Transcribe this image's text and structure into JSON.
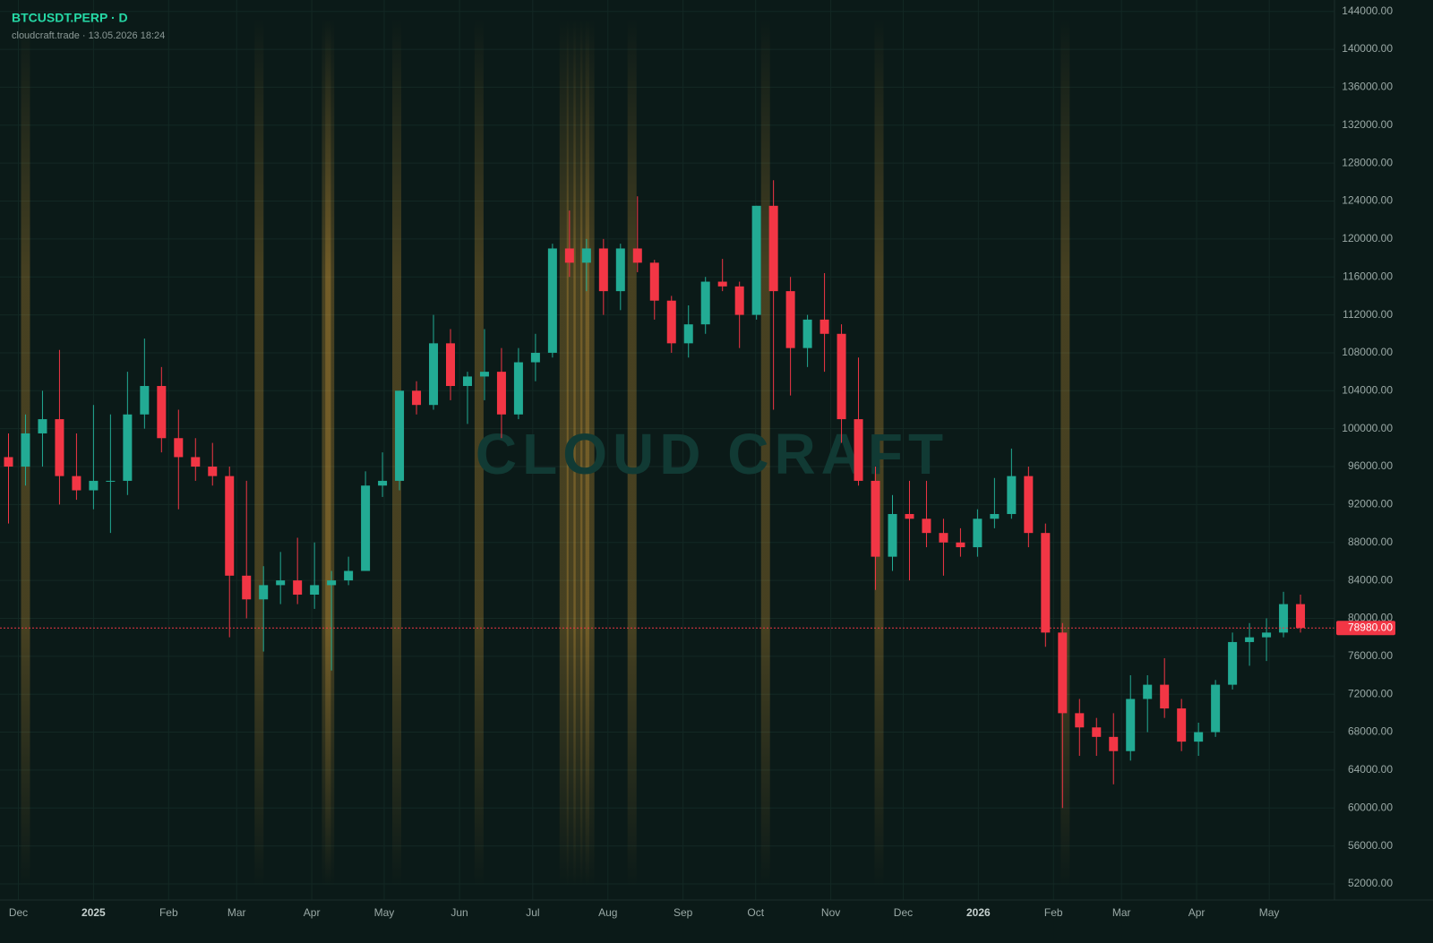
{
  "chart_data": {
    "type": "candlestick",
    "title": "BTCUSDT.PERP · D",
    "subtitle": "cloudcraft.trade · 13.05.2026 18:24",
    "watermark": "CLOUD CRAFT",
    "up_color": "#22ab94",
    "down_color": "#f23645",
    "grid": true,
    "xlim": [
      -0.5,
      78
    ],
    "ylim": [
      50300,
      145200
    ],
    "xticks": [
      {
        "value": 0.58,
        "label": "Dec"
      },
      {
        "value": 5.0,
        "label": "2025"
      },
      {
        "value": 9.42,
        "label": "Feb"
      },
      {
        "value": 13.42,
        "label": "Mar"
      },
      {
        "value": 17.84,
        "label": "Apr"
      },
      {
        "value": 22.1,
        "label": "May"
      },
      {
        "value": 26.53,
        "label": "Jun"
      },
      {
        "value": 30.84,
        "label": "Jul"
      },
      {
        "value": 35.26,
        "label": "Aug"
      },
      {
        "value": 39.68,
        "label": "Sep"
      },
      {
        "value": 43.95,
        "label": "Oct"
      },
      {
        "value": 48.37,
        "label": "Nov"
      },
      {
        "value": 52.63,
        "label": "Dec"
      },
      {
        "value": 57.05,
        "label": "2026"
      },
      {
        "value": 61.47,
        "label": "Feb"
      },
      {
        "value": 65.47,
        "label": "Mar"
      },
      {
        "value": 69.89,
        "label": "Apr"
      },
      {
        "value": 74.16,
        "label": "May"
      }
    ],
    "yticks": [
      {
        "value": 52000,
        "label": "52000.00"
      },
      {
        "value": 56000,
        "label": "56000.00"
      },
      {
        "value": 60000,
        "label": "60000.00"
      },
      {
        "value": 64000,
        "label": "64000.00"
      },
      {
        "value": 68000,
        "label": "68000.00"
      },
      {
        "value": 72000,
        "label": "72000.00"
      },
      {
        "value": 76000,
        "label": "76000.00"
      },
      {
        "value": 80000,
        "label": "80000.00"
      },
      {
        "value": 84000,
        "label": "84000.00"
      },
      {
        "value": 88000,
        "label": "88000.00"
      },
      {
        "value": 92000,
        "label": "92000.00"
      },
      {
        "value": 96000,
        "label": "96000.00"
      },
      {
        "value": 100000,
        "label": "100000.00"
      },
      {
        "value": 104000,
        "label": "104000.00"
      },
      {
        "value": 108000,
        "label": "108000.00"
      },
      {
        "value": 112000,
        "label": "112000.00"
      },
      {
        "value": 116000,
        "label": "116000.00"
      },
      {
        "value": 120000,
        "label": "120000.00"
      },
      {
        "value": 124000,
        "label": "124000.00"
      },
      {
        "value": 128000,
        "label": "128000.00"
      },
      {
        "value": 132000,
        "label": "132000.00"
      },
      {
        "value": 136000,
        "label": "136000.00"
      },
      {
        "value": 140000,
        "label": "140000.00"
      },
      {
        "value": 144000,
        "label": "144000.00"
      }
    ],
    "last_price": {
      "value": 78980,
      "label": "78980.00"
    },
    "highlights": {
      "color": "#e8a93a",
      "x": [
        1.0,
        14.74,
        18.7,
        18.9,
        22.84,
        27.68,
        32.68,
        33.1,
        33.5,
        33.9,
        34.2,
        36.68,
        44.53,
        51.21,
        62.16
      ]
    },
    "x": [
      0,
      1,
      2,
      3,
      4,
      5,
      6,
      7,
      8,
      9,
      10,
      11,
      12,
      13,
      14,
      15,
      16,
      17,
      18,
      19,
      20,
      21,
      22,
      23,
      24,
      25,
      26,
      27,
      28,
      29,
      30,
      31,
      32,
      33,
      34,
      35,
      36,
      37,
      38,
      39,
      40,
      41,
      42,
      43,
      44,
      45,
      46,
      47,
      48,
      49,
      50,
      51,
      52,
      53,
      54,
      55,
      56,
      57,
      58,
      59,
      60,
      61,
      62,
      63,
      64,
      65,
      66,
      67,
      68,
      69,
      70,
      71,
      72,
      73,
      74,
      75,
      76
    ],
    "open": [
      97000,
      96000,
      99500,
      101000,
      95000,
      93500,
      94500,
      94500,
      101500,
      104500,
      99000,
      97000,
      96000,
      95000,
      84500,
      82000,
      83500,
      84000,
      82500,
      83500,
      84000,
      85000,
      94000,
      94500,
      104000,
      102500,
      109000,
      104500,
      105500,
      106000,
      101500,
      107000,
      108000,
      119000,
      117500,
      119000,
      114500,
      119000,
      117500,
      113500,
      109000,
      111000,
      115500,
      115000,
      112000,
      123500,
      114500,
      108500,
      111500,
      110000,
      101000,
      94500,
      86500,
      91000,
      90500,
      89000,
      88000,
      87500,
      90500,
      91000,
      95000,
      89000,
      78500,
      70000,
      68500,
      67500,
      66000,
      71500,
      73000,
      70500,
      67000,
      68000,
      73000,
      77500,
      78000,
      78500,
      81500
    ],
    "high": [
      99500,
      101500,
      104000,
      108300,
      99500,
      102500,
      101500,
      106000,
      109500,
      106500,
      102000,
      99000,
      98500,
      96000,
      94500,
      85500,
      87000,
      88500,
      88000,
      85000,
      86500,
      95500,
      97500,
      104000,
      105000,
      112000,
      110500,
      106000,
      110500,
      108500,
      108500,
      110000,
      119500,
      123000,
      120000,
      120000,
      119500,
      124500,
      117800,
      114000,
      113000,
      116000,
      117900,
      115500,
      123500,
      126200,
      116000,
      112000,
      116400,
      111000,
      107500,
      96000,
      93000,
      94500,
      94500,
      90500,
      89500,
      91500,
      94800,
      97900,
      96000,
      90000,
      79500,
      71500,
      69500,
      70000,
      74000,
      74000,
      75800,
      71500,
      69000,
      73500,
      78500,
      79500,
      80000,
      82800,
      82500
    ],
    "low": [
      90000,
      94000,
      96000,
      92000,
      92500,
      91500,
      89000,
      93000,
      100000,
      97500,
      91500,
      94500,
      94000,
      78000,
      80000,
      76500,
      81500,
      81500,
      81000,
      74500,
      83500,
      85000,
      92800,
      93500,
      101500,
      102000,
      103000,
      100500,
      103000,
      99000,
      101000,
      105000,
      107500,
      116000,
      114500,
      112000,
      112500,
      116500,
      111500,
      108000,
      107500,
      110000,
      114500,
      108500,
      111500,
      102000,
      103500,
      106500,
      106000,
      98500,
      94000,
      83000,
      85000,
      84000,
      87500,
      84500,
      86500,
      86500,
      89500,
      90500,
      87500,
      77000,
      60000,
      65500,
      65500,
      62500,
      65000,
      68000,
      69500,
      66000,
      65500,
      67500,
      72500,
      75000,
      75500,
      78000,
      78500
    ],
    "close": [
      96000,
      99500,
      101000,
      95000,
      93500,
      94500,
      94500,
      101500,
      104500,
      99000,
      97000,
      96000,
      95000,
      84500,
      82000,
      83500,
      84000,
      82500,
      83500,
      84000,
      85000,
      94000,
      94500,
      104000,
      102500,
      109000,
      104500,
      105500,
      106000,
      101500,
      107000,
      108000,
      119000,
      117500,
      119000,
      114500,
      119000,
      117500,
      113500,
      109000,
      111000,
      115500,
      115000,
      112000,
      123500,
      114500,
      108500,
      111500,
      110000,
      101000,
      94500,
      86500,
      91000,
      90500,
      89000,
      88000,
      87500,
      90500,
      91000,
      95000,
      89000,
      78500,
      70000,
      68500,
      67500,
      66000,
      71500,
      73000,
      70500,
      67000,
      68000,
      73000,
      77500,
      78000,
      78500,
      81500,
      78980
    ]
  }
}
